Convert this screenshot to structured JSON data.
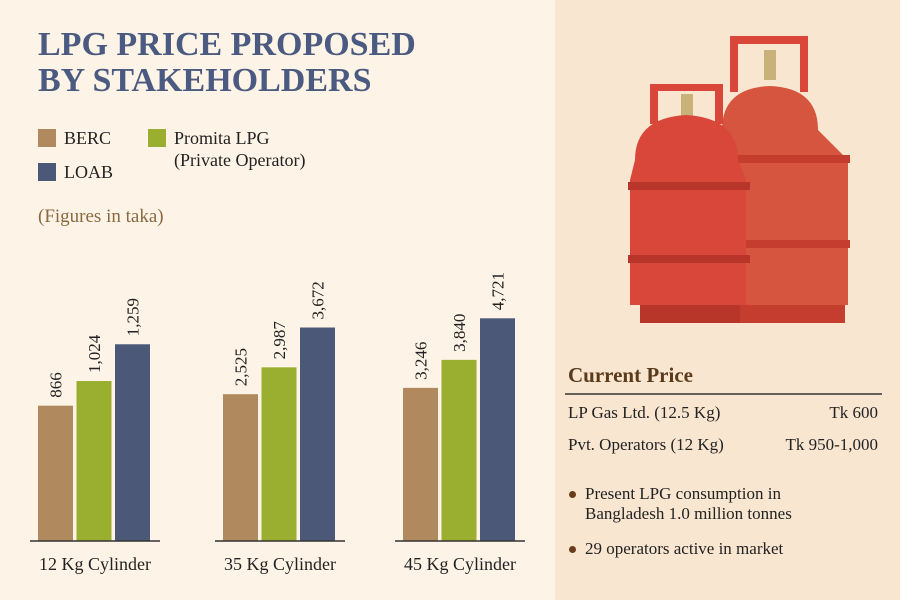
{
  "header": {
    "title": [
      "LPG PRICE PROPOSED",
      "BY STAKEHOLDERS"
    ],
    "note": "(Figures in taka)"
  },
  "legend": {
    "items": [
      {
        "name": "BERC",
        "color": "#b08a5e"
      },
      {
        "name": "Promita LPG (Private Operator)",
        "color": "#9aae2f"
      },
      {
        "name": "LOAB",
        "color": "#4b5878"
      }
    ]
  },
  "chart_data": [
    {
      "type": "bar",
      "xlabel": "12 Kg Cylinder",
      "values": [
        866,
        1024,
        1259
      ],
      "value_labels": [
        "866",
        "1,024",
        "1,259"
      ],
      "ylim": [
        0,
        1600
      ]
    },
    {
      "type": "bar",
      "xlabel": "35 Kg Cylinder",
      "values": [
        2525,
        2987,
        3672
      ],
      "value_labels": [
        "2,525",
        "2,987",
        "3,672"
      ],
      "ylim": [
        0,
        4300
      ]
    },
    {
      "type": "bar",
      "xlabel": "45 Kg Cylinder",
      "values": [
        3246,
        3840,
        4721
      ],
      "value_labels": [
        "3,246",
        "3,840",
        "4,721"
      ],
      "ylim": [
        0,
        5300
      ]
    }
  ],
  "current_price": {
    "title": "Current Price",
    "rows": [
      [
        "LP Gas Ltd. (12.5 Kg)",
        "Tk 600"
      ],
      [
        "Pvt. Operators (12 Kg)",
        "Tk 950-1,000"
      ]
    ],
    "bullets": [
      "Present LPG consumption in Bangladesh 1.0 million tonnes",
      "29 operators active in market"
    ]
  }
}
